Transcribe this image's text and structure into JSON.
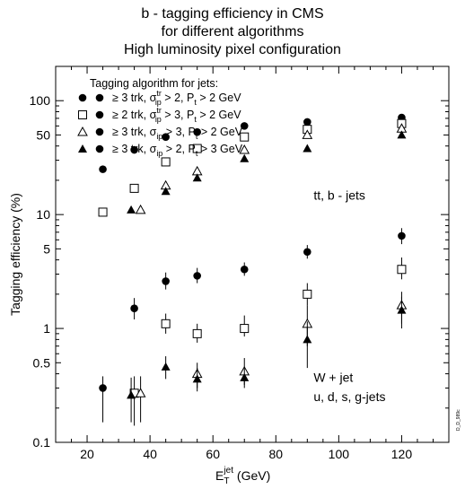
{
  "title": [
    "b - tagging efficiency in CMS",
    "for different algorithms",
    "High luminosity pixel configuration"
  ],
  "side_note": "D_D_989c",
  "chart_data": {
    "type": "scatter",
    "xlabel": "E_T^jet (GeV)",
    "xlabel_parts": {
      "base": "E",
      "sub": "T",
      "sup": "jet",
      "unit": " (GeV)"
    },
    "ylabel": "Tagging efficiency (%)",
    "ylabel_text": "Tagging efficiency (%)",
    "xlim": [
      10,
      135
    ],
    "ylim": [
      0.1,
      200
    ],
    "y_scale": "log",
    "x_ticks": [
      20,
      40,
      60,
      80,
      100,
      120
    ],
    "x_tick_labels": [
      "20",
      "40",
      "60",
      "80",
      "100",
      "120"
    ],
    "y_ticks": [
      0.1,
      0.5,
      1,
      5,
      10,
      50,
      100
    ],
    "y_tick_labels": [
      "0.1",
      "0.5",
      "1",
      "5",
      "10",
      "50",
      "100"
    ],
    "legend_title": "Tagging algorithm for jets:",
    "legend_entries": [
      {
        "marker1": "filled-circle",
        "marker2": "filled-circle",
        "label": "≥ 3 trk,  σ_ip^tr > 2,   P_t > 2 GeV",
        "trk": "≥ 3 trk,",
        "sig": "σ",
        "sig_sup": "tr",
        "sig_sub": "ip",
        "sig_cut": " > 2,",
        "pt": "P",
        "pt_sub": "t",
        "pt_cut": " > 2 GeV"
      },
      {
        "marker1": "open-square",
        "marker2": "filled-circle",
        "label": "≥ 2 trk,  σ_ip^tr > 3,   P_t > 2 GeV",
        "trk": "≥ 2 trk,",
        "sig": "σ",
        "sig_sup": "tr",
        "sig_sub": "ip",
        "sig_cut": " > 3,",
        "pt": "P",
        "pt_sub": "t",
        "pt_cut": " > 2 GeV"
      },
      {
        "marker1": "open-triangle",
        "marker2": "filled-circle",
        "label": "≥ 3 trk,  σ_ip > 3,   P_t > 2 GeV",
        "trk": "≥ 3 trk,",
        "sig": "σ",
        "sig_sup": "",
        "sig_sub": "ip",
        "sig_cut": " > 3,",
        "pt": "P",
        "pt_sub": "t",
        "pt_cut": " > 2 GeV"
      },
      {
        "marker1": "filled-triangle",
        "marker2": "filled-circle",
        "label": "≥ 3 trk,  σ_ip > 2,   P_t > 3 GeV",
        "trk": "≥ 3 trk,",
        "sig": "σ",
        "sig_sup": "",
        "sig_sub": "ip",
        "sig_cut": " > 2,",
        "pt": "P",
        "pt_sub": "t",
        "pt_cut": " > 3 GeV"
      }
    ],
    "legend_placement": "top-left",
    "annotations": [
      {
        "text": "tt,    b - jets",
        "x": 92,
        "y": 13.5
      },
      {
        "text": "W + jet",
        "x": 92,
        "y": 0.34
      },
      {
        "text": "u, d, s, g-jets",
        "x": 92,
        "y": 0.23
      }
    ],
    "series": [
      {
        "group": "b-jets",
        "marker": "filled-circle",
        "points": [
          [
            25,
            25
          ],
          [
            35,
            37
          ],
          [
            45,
            48
          ],
          [
            55,
            53
          ],
          [
            70,
            60
          ],
          [
            90,
            65
          ],
          [
            120,
            71
          ]
        ]
      },
      {
        "group": "b-jets",
        "marker": "open-square",
        "points": [
          [
            25,
            10.5
          ],
          [
            35,
            17
          ],
          [
            45,
            29
          ],
          [
            55,
            38
          ],
          [
            70,
            48
          ],
          [
            90,
            56
          ],
          [
            120,
            63
          ]
        ]
      },
      {
        "group": "b-jets",
        "marker": "open-triangle",
        "points": [
          [
            37,
            11
          ],
          [
            45,
            18
          ],
          [
            55,
            24
          ],
          [
            70,
            37
          ],
          [
            90,
            50
          ],
          [
            120,
            57
          ]
        ]
      },
      {
        "group": "b-jets",
        "marker": "filled-triangle",
        "points": [
          [
            34,
            11
          ],
          [
            45,
            16
          ],
          [
            55,
            21
          ],
          [
            70,
            31
          ],
          [
            90,
            38
          ],
          [
            120,
            50
          ]
        ]
      },
      {
        "group": "light-jets",
        "marker": "filled-circle",
        "points": [
          [
            25,
            0.3
          ],
          [
            35,
            1.5
          ],
          [
            45,
            2.6
          ],
          [
            55,
            2.9
          ],
          [
            70,
            3.3
          ],
          [
            90,
            4.7
          ],
          [
            120,
            6.5
          ]
        ],
        "err_low": [
          0.15,
          1.2,
          2.2,
          2.5,
          2.9,
          4.1,
          5.5
        ],
        "err_high": [
          0.38,
          1.85,
          3.1,
          3.4,
          3.8,
          5.4,
          7.6
        ]
      },
      {
        "group": "light-jets",
        "marker": "open-square",
        "points": [
          [
            35,
            0.27
          ],
          [
            45,
            1.1
          ],
          [
            55,
            0.9
          ],
          [
            70,
            1.0
          ],
          [
            90,
            2.0
          ],
          [
            120,
            3.3
          ]
        ],
        "err_low": [
          0.14,
          0.9,
          0.75,
          0.85,
          1.6,
          2.7
        ],
        "err_high": [
          0.38,
          1.35,
          1.1,
          1.3,
          2.5,
          4.2
        ]
      },
      {
        "group": "light-jets",
        "marker": "open-triangle",
        "points": [
          [
            37,
            0.27
          ],
          [
            55,
            0.4
          ],
          [
            70,
            0.42
          ],
          [
            90,
            1.1
          ],
          [
            120,
            1.6
          ]
        ],
        "err_low": [
          0.15,
          0.3,
          0.32,
          0.7,
          1.1
        ],
        "err_high": [
          0.38,
          0.5,
          0.55,
          1.6,
          2.1
        ]
      },
      {
        "group": "light-jets",
        "marker": "filled-triangle",
        "points": [
          [
            34,
            0.26
          ],
          [
            45,
            0.46
          ],
          [
            55,
            0.36
          ],
          [
            70,
            0.37
          ],
          [
            90,
            0.8
          ],
          [
            120,
            1.45
          ]
        ],
        "err_low": [
          0.15,
          0.36,
          0.28,
          0.3,
          0.45,
          1.0
        ],
        "err_high": [
          0.37,
          0.57,
          0.45,
          0.45,
          1.15,
          1.9
        ]
      }
    ]
  }
}
